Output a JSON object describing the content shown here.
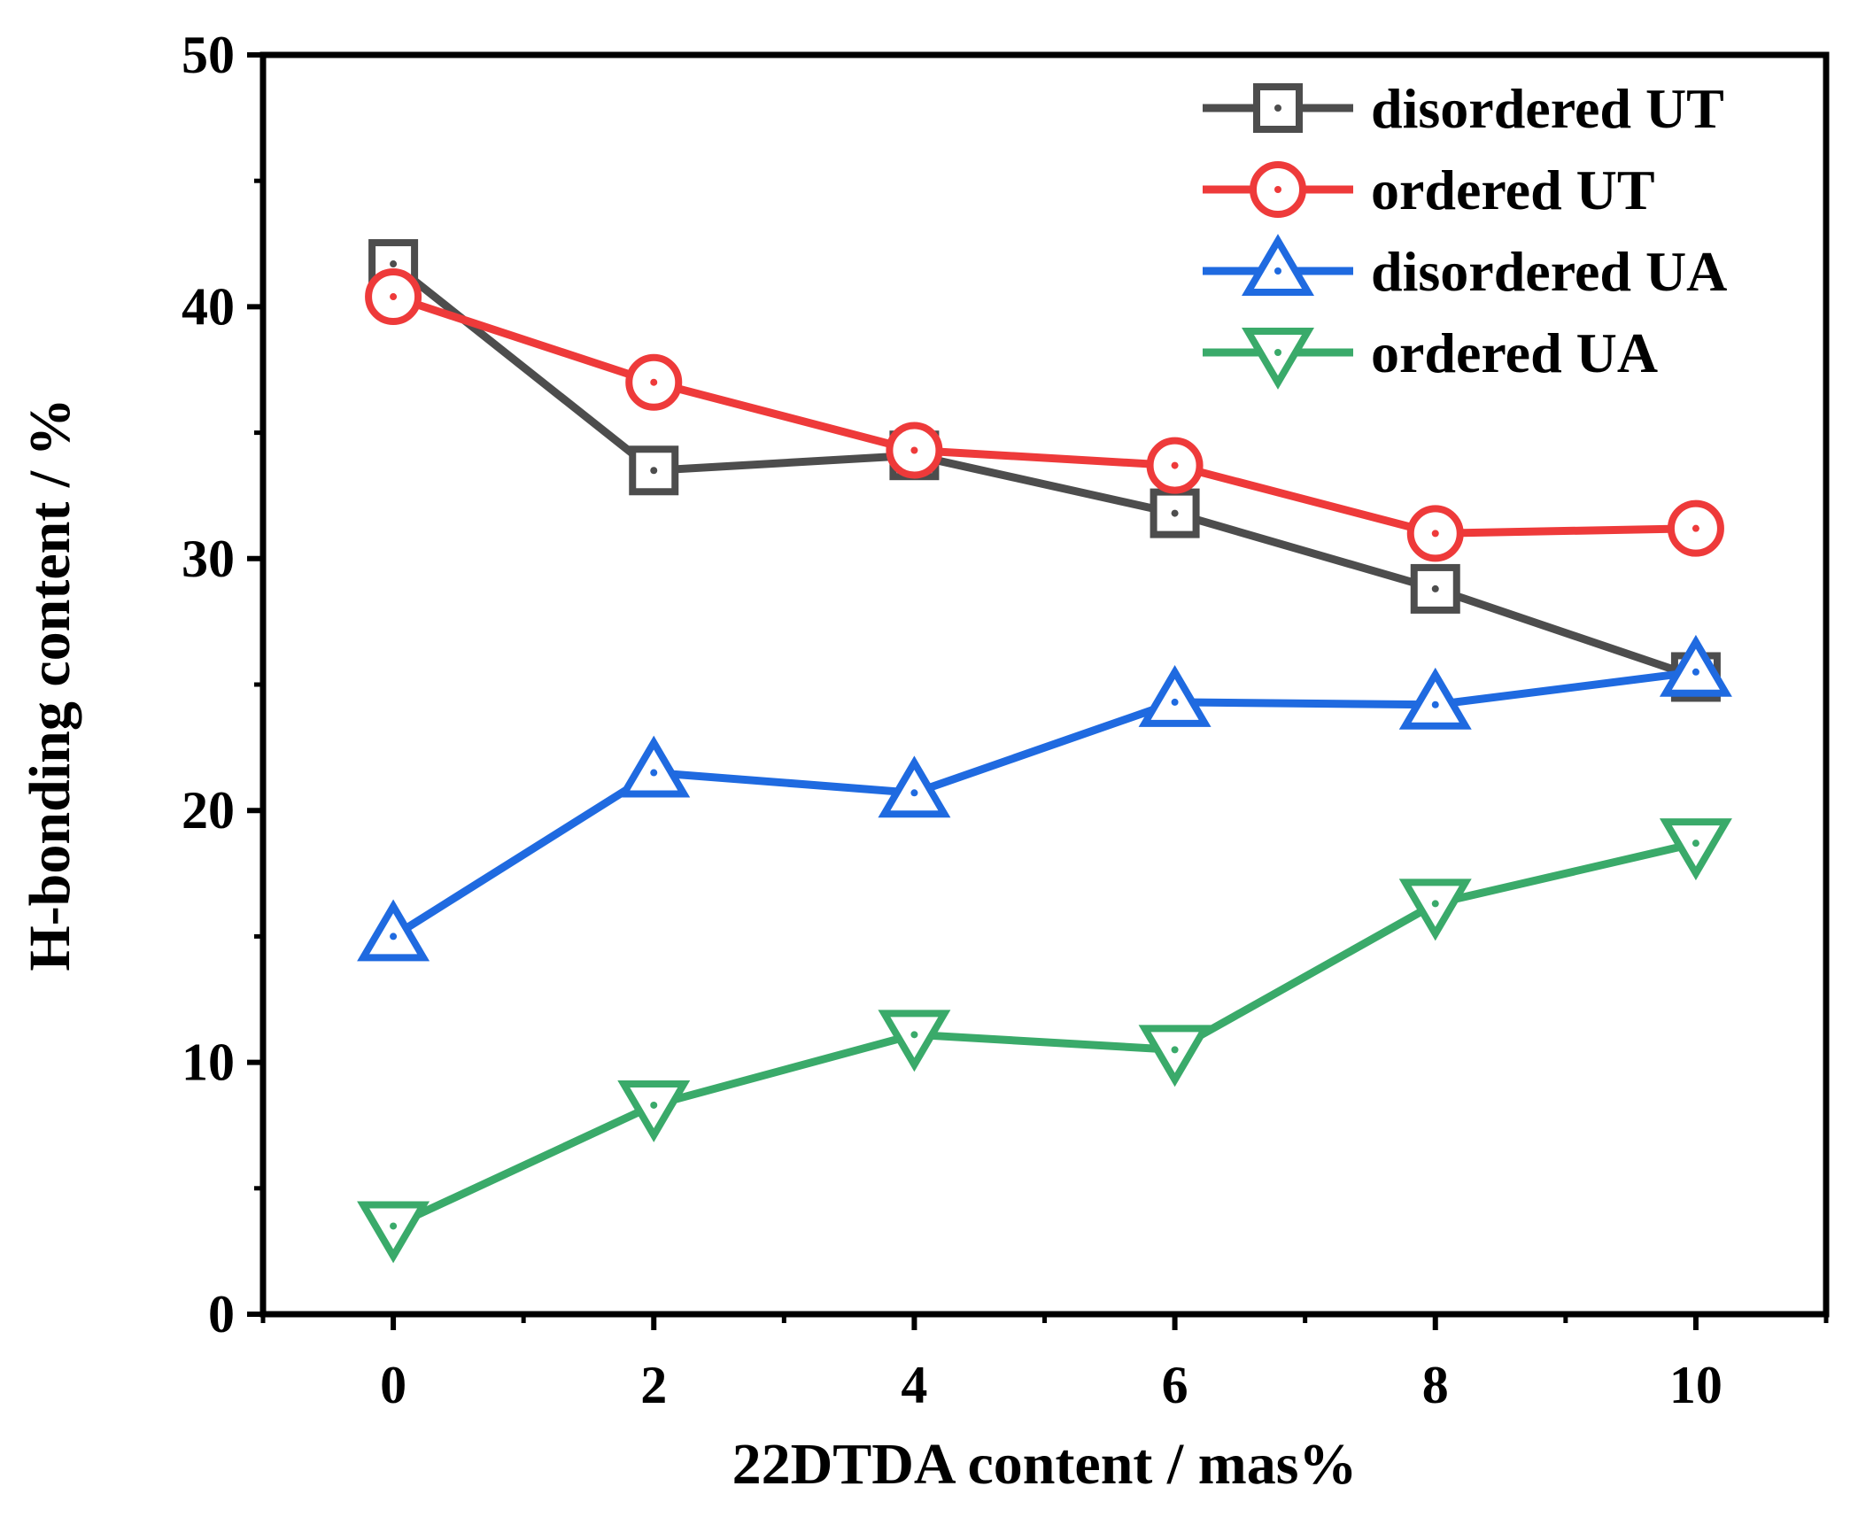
{
  "chart_data": {
    "type": "line",
    "xlabel": "22DTDA content / mas%",
    "ylabel": "H-bonding content / %",
    "xlim": [
      -1,
      11
    ],
    "ylim": [
      0,
      50
    ],
    "x_ticks": [
      0,
      2,
      4,
      6,
      8,
      10
    ],
    "x_tick_labels": [
      "0",
      "2",
      "4",
      "6",
      "8",
      "10"
    ],
    "y_ticks": [
      0,
      10,
      20,
      30,
      40,
      50
    ],
    "y_tick_labels": [
      "0",
      "10",
      "20",
      "30",
      "40",
      "50"
    ],
    "grid": false,
    "legend_position": "top-right",
    "x": [
      0,
      2,
      4,
      6,
      8,
      10
    ],
    "series": [
      {
        "name": "disordered UT",
        "marker": "square",
        "color": "#4d4d4d",
        "values": [
          41.7,
          33.5,
          34.1,
          31.8,
          28.8,
          25.3
        ]
      },
      {
        "name": "ordered UT",
        "marker": "circle",
        "color": "#ee3a3a",
        "values": [
          40.4,
          37.0,
          34.3,
          33.7,
          31.0,
          31.2
        ]
      },
      {
        "name": "disordered UA",
        "marker": "triangle-up",
        "color": "#1f6ae0",
        "values": [
          15.0,
          21.5,
          20.7,
          24.3,
          24.2,
          25.5
        ]
      },
      {
        "name": "ordered UA",
        "marker": "triangle-down",
        "color": "#3aaa6a",
        "values": [
          3.5,
          8.3,
          11.1,
          10.5,
          16.3,
          18.7
        ]
      }
    ]
  }
}
